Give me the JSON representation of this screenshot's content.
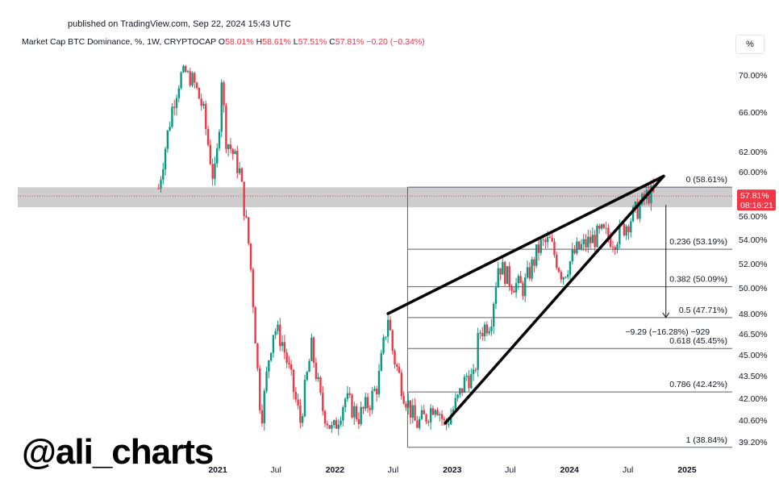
{
  "published": "published on TradingView.com, Sep 22, 2024 15:43 UTC",
  "legend": {
    "symbol": "Market Cap BTC Dominance, %, 1W, CRYPTOCAP",
    "o_label": "O",
    "o_value": "58.01%",
    "h_label": "H",
    "h_value": "58.61%",
    "l_label": "L",
    "l_value": "57.51%",
    "c_label": "C",
    "c_value": "57.81%",
    "change": "−0.20 (−0.34%)"
  },
  "scale_button": "%",
  "watermark": "@ali_charts",
  "colors": {
    "up": "#089981",
    "down": "#f23645",
    "price_tag": "#f23645",
    "zone": "#c8c8c8"
  },
  "price_tag": {
    "price": "57.81%",
    "countdown": "08:16:21"
  },
  "move_label": "−9.29 (−16.28%) −929",
  "chart_data": {
    "type": "candlestick",
    "title": "Market Cap BTC Dominance, %, 1W, CRYPTOCAP",
    "ylim": [
      38.4,
      76.0
    ],
    "y_ticks": [
      "70.00%",
      "66.00%",
      "62.00%",
      "60.00%",
      "56.00%",
      "54.00%",
      "52.00%",
      "50.00%",
      "48.00%",
      "46.50%",
      "45.00%",
      "43.50%",
      "42.00%",
      "40.60%",
      "39.20%"
    ],
    "y_tick_values": [
      70.0,
      66.0,
      62.0,
      60.0,
      56.0,
      54.0,
      52.0,
      50.0,
      48.0,
      46.5,
      45.0,
      43.5,
      42.0,
      40.6,
      39.2
    ],
    "x_ticks": [
      {
        "label": "2021",
        "date": "2021-01-01"
      },
      {
        "label": "Jul",
        "date": "2021-07-01"
      },
      {
        "label": "2022",
        "date": "2022-01-01"
      },
      {
        "label": "Jul",
        "date": "2022-07-01"
      },
      {
        "label": "2023",
        "date": "2023-01-01"
      },
      {
        "label": "Jul",
        "date": "2023-07-01"
      },
      {
        "label": "2024",
        "date": "2024-01-01"
      },
      {
        "label": "Jul",
        "date": "2024-07-01"
      },
      {
        "label": "2025",
        "date": "2025-01-01"
      }
    ],
    "key_points": [
      {
        "date": "2020-07-01",
        "value": 58.5
      },
      {
        "date": "2020-08-15",
        "value": 67.0
      },
      {
        "date": "2020-09-15",
        "value": 71.0
      },
      {
        "date": "2020-10-15",
        "value": 69.5
      },
      {
        "date": "2020-11-15",
        "value": 66.5
      },
      {
        "date": "2020-12-01",
        "value": 63.0
      },
      {
        "date": "2020-12-20",
        "value": 59.0
      },
      {
        "date": "2021-01-05",
        "value": 63.5
      },
      {
        "date": "2021-01-10",
        "value": 71.5
      },
      {
        "date": "2021-01-25",
        "value": 63.5
      },
      {
        "date": "2021-02-15",
        "value": 62.0
      },
      {
        "date": "2021-03-10",
        "value": 60.0
      },
      {
        "date": "2021-04-10",
        "value": 53.0
      },
      {
        "date": "2021-05-10",
        "value": 42.0
      },
      {
        "date": "2021-05-20",
        "value": 41.0
      },
      {
        "date": "2021-06-10",
        "value": 45.0
      },
      {
        "date": "2021-06-25",
        "value": 47.0
      },
      {
        "date": "2021-07-20",
        "value": 46.0
      },
      {
        "date": "2021-08-20",
        "value": 43.0
      },
      {
        "date": "2021-09-15",
        "value": 40.5
      },
      {
        "date": "2021-10-20",
        "value": 45.5
      },
      {
        "date": "2021-11-20",
        "value": 41.5
      },
      {
        "date": "2021-12-25",
        "value": 39.8
      },
      {
        "date": "2022-02-01",
        "value": 42.0
      },
      {
        "date": "2022-03-15",
        "value": 40.8
      },
      {
        "date": "2022-04-20",
        "value": 41.8
      },
      {
        "date": "2022-05-15",
        "value": 43.0
      },
      {
        "date": "2022-06-15",
        "value": 47.8
      },
      {
        "date": "2022-07-01",
        "value": 45.0
      },
      {
        "date": "2022-08-01",
        "value": 42.5
      },
      {
        "date": "2022-09-10",
        "value": 40.3
      },
      {
        "date": "2022-10-10",
        "value": 40.8
      },
      {
        "date": "2022-11-10",
        "value": 41.8
      },
      {
        "date": "2022-12-10",
        "value": 40.2
      },
      {
        "date": "2023-01-20",
        "value": 42.0
      },
      {
        "date": "2023-02-15",
        "value": 43.5
      },
      {
        "date": "2023-03-10",
        "value": 43.2
      },
      {
        "date": "2023-03-25",
        "value": 46.6
      },
      {
        "date": "2023-05-01",
        "value": 47.5
      },
      {
        "date": "2023-05-25",
        "value": 52.0
      },
      {
        "date": "2023-07-01",
        "value": 50.5
      },
      {
        "date": "2023-08-10",
        "value": 50.0
      },
      {
        "date": "2023-10-01",
        "value": 53.5
      },
      {
        "date": "2023-11-01",
        "value": 53.8
      },
      {
        "date": "2023-12-10",
        "value": 51.0
      },
      {
        "date": "2024-01-20",
        "value": 53.0
      },
      {
        "date": "2024-03-01",
        "value": 53.8
      },
      {
        "date": "2024-04-10",
        "value": 54.5
      },
      {
        "date": "2024-05-20",
        "value": 54.0
      },
      {
        "date": "2024-07-01",
        "value": 55.5
      },
      {
        "date": "2024-08-10",
        "value": 57.0
      },
      {
        "date": "2024-09-01",
        "value": 58.0
      },
      {
        "date": "2024-09-22",
        "value": 57.81
      }
    ],
    "last_close": 57.81,
    "resistance_zone": [
      56.8,
      58.6
    ],
    "fibonacci": [
      {
        "label": "0 (58.61%)",
        "value": 58.61
      },
      {
        "label": "0.236 (53.19%)",
        "value": 53.19
      },
      {
        "label": "0.382 (50.09%)",
        "value": 50.09
      },
      {
        "label": "0.5 (47.71%)",
        "value": 47.71
      },
      {
        "label": "0.618 (45.45%)",
        "value": 45.45
      },
      {
        "label": "0.786 (42.42%)",
        "value": 42.42
      },
      {
        "label": "1 (38.84%)",
        "value": 38.84
      }
    ],
    "fib_start_date": "2022-08-15",
    "rising_wedge": {
      "upper": [
        {
          "date": "2022-06-15",
          "value": 48.0
        },
        {
          "date": "2024-10-20",
          "value": 59.6
        }
      ],
      "lower": [
        {
          "date": "2022-12-10",
          "value": 40.4
        },
        {
          "date": "2024-10-20",
          "value": 59.6
        }
      ]
    },
    "projection": {
      "from_date": "2024-09-22",
      "from_value": 57.0,
      "to_value": 47.71
    }
  }
}
